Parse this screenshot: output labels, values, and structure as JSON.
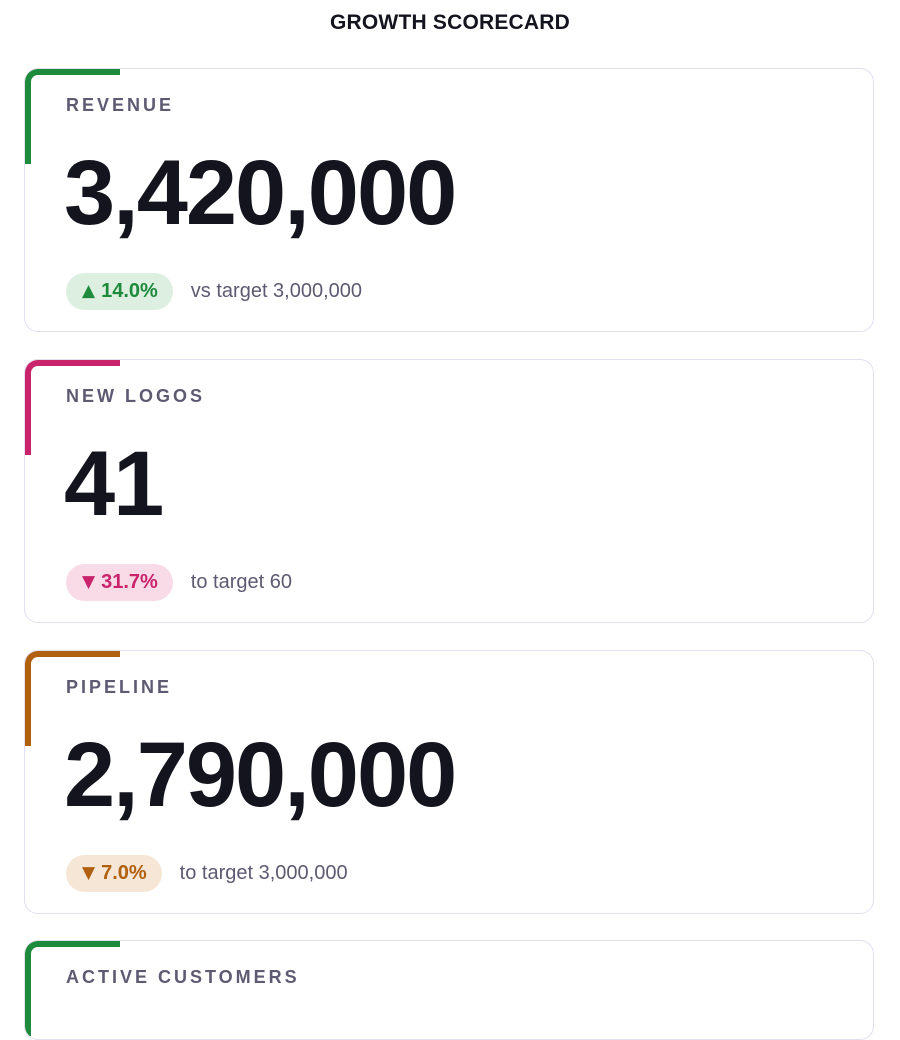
{
  "page": {
    "title": "GROWTH SCORECARD"
  },
  "cards": [
    {
      "label": "REVENUE",
      "value": "3,420,000",
      "delta": {
        "direction": "up",
        "arrow": "▲",
        "percent": "14.0%"
      },
      "note": "vs target 3,000,000",
      "accent_color": "#1e8a3c",
      "pill_bg": "#dcefe0"
    },
    {
      "label": "NEW LOGOS",
      "value": "41",
      "delta": {
        "direction": "down",
        "arrow": "▼",
        "percent": "31.7%"
      },
      "note": "to target 60",
      "accent_color": "#c8236b",
      "pill_bg": "#f8dbe7"
    },
    {
      "label": "PIPELINE",
      "value": "2,790,000",
      "delta": {
        "direction": "down",
        "arrow": "▼",
        "percent": "7.0%"
      },
      "note": "to target 3,000,000",
      "accent_color": "#b0600f",
      "pill_bg": "#f5e6d6"
    },
    {
      "label": "ACTIVE CUSTOMERS",
      "accent_color": "#1e8a3c"
    }
  ]
}
